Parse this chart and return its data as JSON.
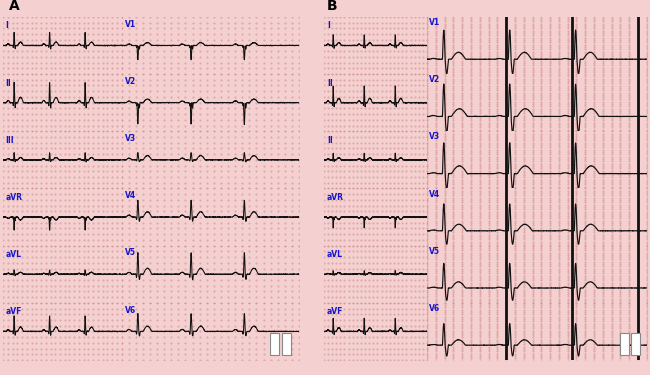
{
  "bg_color": "#f5d0d0",
  "grid_dot_color": "#d09090",
  "ecg_color": "#111111",
  "label_color": "#1515cc",
  "panel_A_label": "A",
  "panel_B_label": "B",
  "leads_left_A": [
    "I",
    "II",
    "III",
    "aVR",
    "aVL",
    "aVF"
  ],
  "leads_right_A": [
    "V1",
    "V2",
    "V3",
    "V4",
    "V5",
    "V6"
  ],
  "leads_left_B": [
    "I",
    "II",
    "II",
    "aVR",
    "aVL",
    "aVF"
  ],
  "leads_right_B": [
    "V1",
    "V2",
    "V3",
    "V4",
    "V5",
    "V6"
  ],
  "cal_color": "#888888",
  "white_sep": "#ffffff",
  "figsize": [
    6.5,
    3.75
  ],
  "dpi": 100
}
